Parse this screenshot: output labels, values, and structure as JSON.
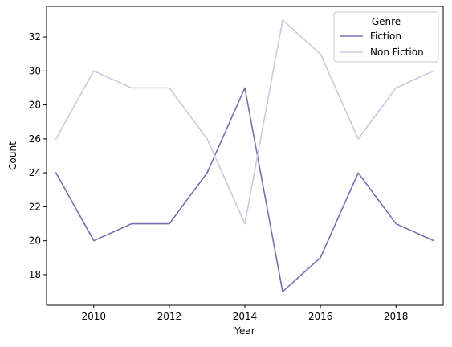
{
  "chart_data": {
    "type": "line",
    "title": "",
    "xlabel": "Year",
    "ylabel": "Count",
    "xlim": [
      2008.75,
      2019.25
    ],
    "ylim": [
      16.2,
      33.8
    ],
    "xticks": [
      2010,
      2012,
      2014,
      2016,
      2018
    ],
    "yticks": [
      18,
      20,
      22,
      24,
      26,
      28,
      30,
      32
    ],
    "grid": false,
    "legend": {
      "title": "Genre",
      "placement": "top-right"
    },
    "x": [
      2009,
      2010,
      2011,
      2012,
      2013,
      2014,
      2015,
      2016,
      2017,
      2018,
      2019
    ],
    "series": [
      {
        "name": "Fiction",
        "color": "#7570b3",
        "values": [
          24,
          20,
          21,
          21,
          24,
          29,
          17,
          19,
          24,
          21,
          20
        ]
      },
      {
        "name": "Non Fiction",
        "color": "#cbc9e2",
        "values": [
          26,
          30,
          29,
          29,
          26,
          21,
          33,
          31,
          26,
          29,
          30
        ]
      }
    ]
  }
}
